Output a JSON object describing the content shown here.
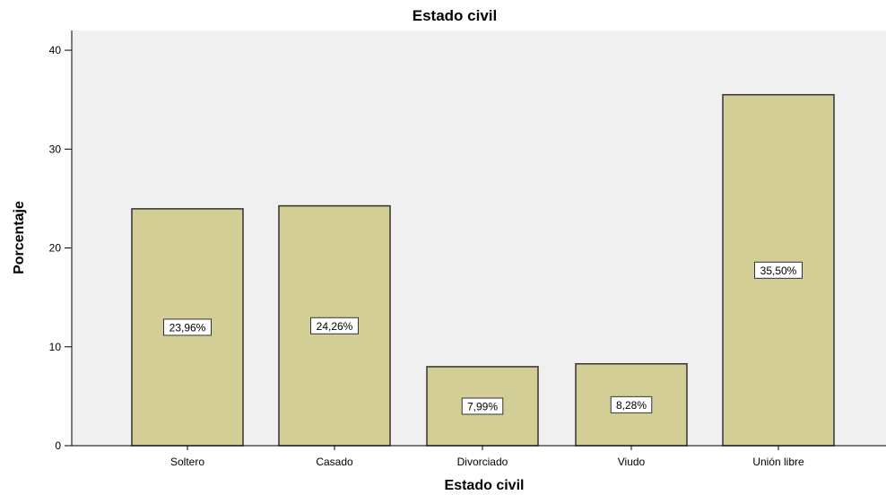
{
  "chart_data": {
    "type": "bar",
    "title": "Estado civil",
    "xlabel": "Estado civil",
    "ylabel": "Porcentaje",
    "categories": [
      "Soltero",
      "Casado",
      "Divorciado",
      "Viudo",
      "Unión libre"
    ],
    "values": [
      23.96,
      24.26,
      7.99,
      8.28,
      35.5
    ],
    "data_labels": [
      "23,96%",
      "24,26%",
      "7,99%",
      "8,28%",
      "35,50%"
    ],
    "ylim": [
      0,
      42
    ],
    "yticks": [
      0,
      10,
      20,
      30,
      40
    ],
    "ytick_labels": [
      "0",
      "10",
      "20",
      "30",
      "40"
    ],
    "grid": false,
    "colors": {
      "bar_fill": "#d3cd96",
      "bar_stroke": "#333333",
      "plot_background": "#f0f0f0"
    }
  }
}
